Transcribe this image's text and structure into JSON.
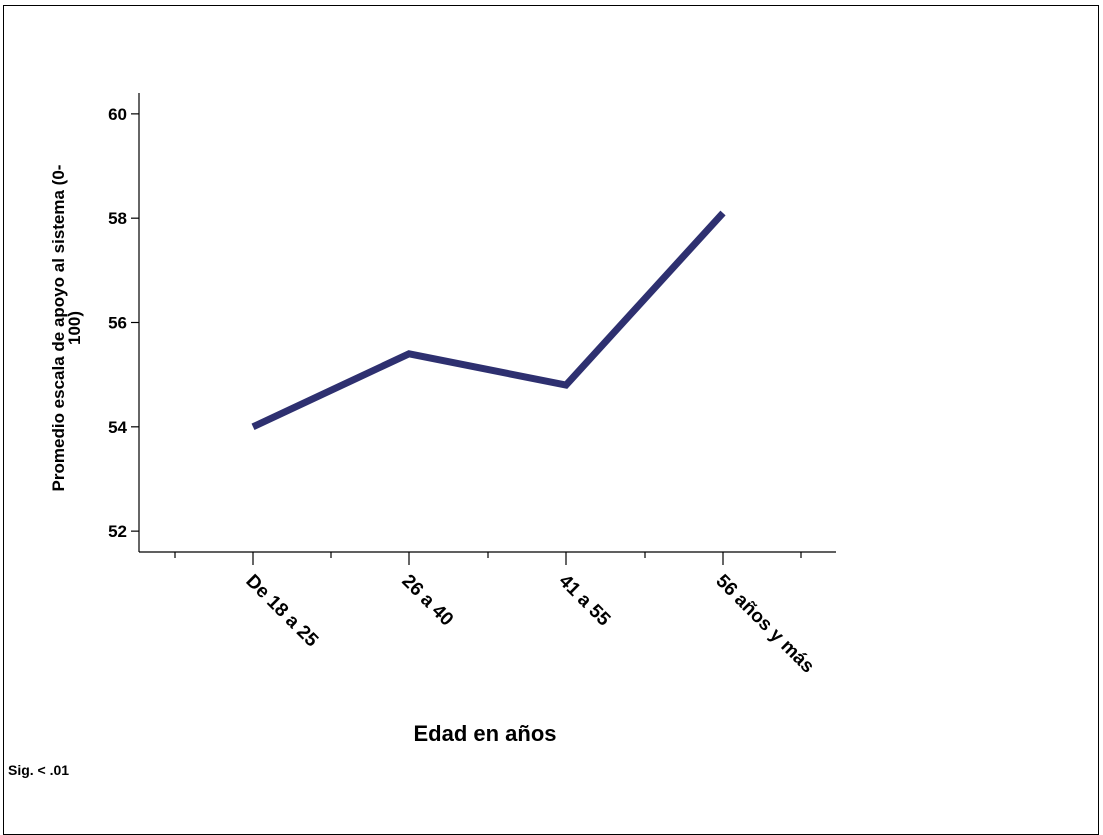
{
  "chart_data": {
    "type": "line",
    "categories": [
      "De 18 a 25",
      "26 a 40",
      "41 a 55",
      "56 años y más"
    ],
    "series": [
      {
        "values": [
          54.0,
          55.4,
          54.8,
          58.1
        ]
      }
    ],
    "xlabel": "Edad en años",
    "ylabel_lines": [
      "Promedio escala de apoyo al sistema (0-",
      "100)"
    ],
    "ylim": [
      51.6,
      60.4
    ],
    "yticks": [
      52,
      54,
      56,
      58,
      60
    ],
    "grid": false,
    "colors": {
      "line": "#2e3070"
    }
  },
  "note": "Sig. < .01"
}
